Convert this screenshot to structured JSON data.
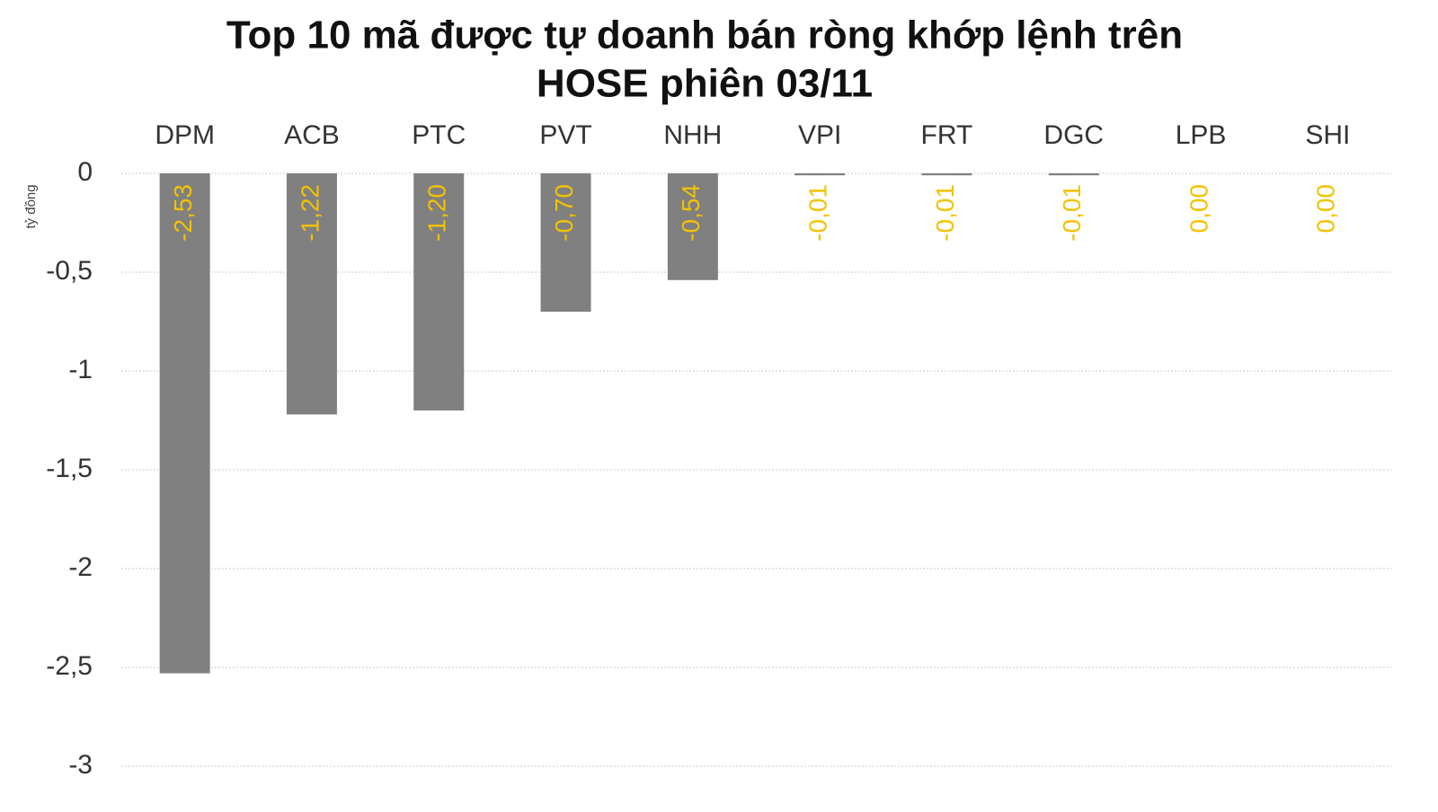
{
  "chart_data": {
    "type": "bar",
    "title": [
      "Top 10 mã được tự doanh bán ròng khớp lệnh trên",
      "HOSE phiên 03/11"
    ],
    "y_label": "tỷ đồng",
    "categories": [
      "DPM",
      "ACB",
      "PTC",
      "PVT",
      "NHH",
      "VPI",
      "FRT",
      "DGC",
      "LPB",
      "SHI"
    ],
    "values": [
      -2.53,
      -1.22,
      -1.2,
      -0.7,
      -0.54,
      -0.01,
      -0.01,
      -0.01,
      0.0,
      0.0
    ],
    "value_labels": [
      "-2,53",
      "-1,22",
      "-1,20",
      "-0,70",
      "-0,54",
      "-0,01",
      "-0,01",
      "-0,01",
      "0,00",
      "0,00"
    ],
    "color": "#808080",
    "label_color": "#f2c200",
    "ylim": [
      -3,
      0
    ],
    "yticks": [
      0,
      {
        "value": -0.5,
        "label": "-0,5"
      },
      -1,
      {
        "value": -1.5,
        "label": "-1,5"
      },
      -2,
      {
        "value": -2.5,
        "label": "-2,5"
      },
      -3
    ],
    "grid": true
  }
}
